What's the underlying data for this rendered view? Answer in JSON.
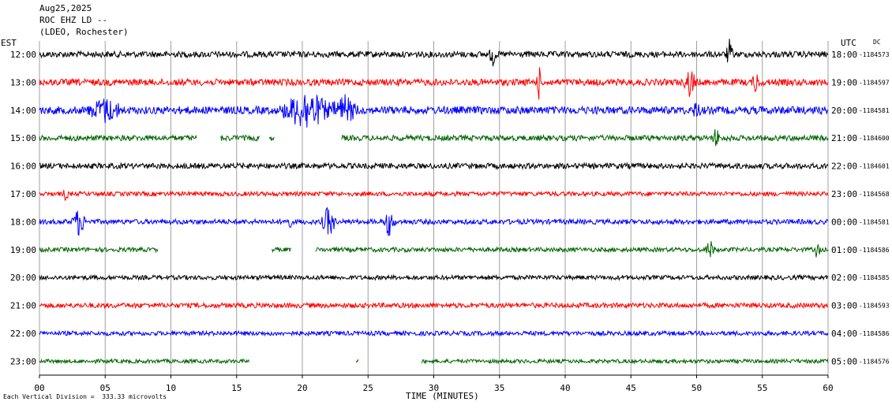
{
  "header": {
    "date": "Aug25,2025",
    "station": "ROC EHZ LD --",
    "network": "(LDEO, Rochester)"
  },
  "axes": {
    "left_tz": "EST",
    "right_tz": "UTC",
    "dc_label": "DC"
  },
  "footer": {
    "scale_note": "Each Vertical Division =  333.33 microvolts",
    "xaxis_title": "TIME (MINUTES)"
  },
  "chart_data": {
    "type": "line",
    "title": "",
    "xlabel": "TIME (MINUTES)",
    "ylabel": "",
    "xlim": [
      0,
      60
    ],
    "grid": true,
    "x_ticks": [
      "00",
      "05",
      "10",
      "15",
      "20",
      "25",
      "30",
      "35",
      "40",
      "45",
      "50",
      "55",
      "60"
    ],
    "trace_colors": [
      "#000000",
      "#ff0000",
      "#0000ff",
      "#006400"
    ],
    "rows": [
      {
        "est": "12:00",
        "utc": "18:00",
        "dc": "-1184573",
        "color": "#000000",
        "noise": 0.55,
        "gaps": [],
        "events": [
          {
            "t": 34.5,
            "amp": 1.6,
            "dur": 0.3
          },
          {
            "t": 52.5,
            "amp": 1.8,
            "dur": 0.3
          }
        ]
      },
      {
        "est": "13:00",
        "utc": "19:00",
        "dc": "-1184597",
        "color": "#ff0000",
        "noise": 0.6,
        "gaps": [],
        "events": [
          {
            "t": 38.0,
            "amp": 2.2,
            "dur": 0.2
          },
          {
            "t": 49.5,
            "amp": 2.0,
            "dur": 0.5
          },
          {
            "t": 54.5,
            "amp": 1.5,
            "dur": 0.3
          }
        ]
      },
      {
        "est": "14:00",
        "utc": "20:00",
        "dc": "-1184581",
        "color": "#0000ff",
        "noise": 0.7,
        "gaps": [],
        "events": [
          {
            "t": 5.0,
            "amp": 1.5,
            "dur": 1.5
          },
          {
            "t": 20.3,
            "amp": 2.6,
            "dur": 2.2
          },
          {
            "t": 23.2,
            "amp": 1.8,
            "dur": 1.2
          },
          {
            "t": 50.0,
            "amp": 1.4,
            "dur": 0.3
          }
        ]
      },
      {
        "est": "15:00",
        "utc": "21:00",
        "dc": "-1184600",
        "color": "#006400",
        "noise": 0.5,
        "gaps": [
          [
            12.0,
            13.8
          ],
          [
            16.8,
            17.5
          ],
          [
            17.9,
            23.0
          ]
        ],
        "events": [
          {
            "t": 51.5,
            "amp": 1.4,
            "dur": 0.3
          }
        ]
      },
      {
        "est": "16:00",
        "utc": "22:00",
        "dc": "-1184601",
        "color": "#000000",
        "noise": 0.5,
        "gaps": [],
        "events": []
      },
      {
        "est": "17:00",
        "utc": "23:00",
        "dc": "-1184568",
        "color": "#ff0000",
        "noise": 0.4,
        "gaps": [],
        "events": [
          {
            "t": 2.0,
            "amp": 1.2,
            "dur": 0.2
          }
        ]
      },
      {
        "est": "18:00",
        "utc": "00:00",
        "dc": "-1184581",
        "color": "#0000ff",
        "noise": 0.45,
        "gaps": [],
        "events": [
          {
            "t": 3.0,
            "amp": 1.8,
            "dur": 0.6
          },
          {
            "t": 18.9,
            "amp": 1.4,
            "dur": 0.3
          },
          {
            "t": 22.0,
            "amp": 2.2,
            "dur": 0.6
          },
          {
            "t": 26.6,
            "amp": 1.9,
            "dur": 0.5
          }
        ]
      },
      {
        "est": "19:00",
        "utc": "01:00",
        "dc": "-1184586",
        "color": "#006400",
        "noise": 0.4,
        "gaps": [
          [
            9.0,
            17.7
          ],
          [
            19.2,
            21.0
          ]
        ],
        "events": [
          {
            "t": 51.0,
            "amp": 1.3,
            "dur": 0.4
          },
          {
            "t": 59.2,
            "amp": 1.6,
            "dur": 0.2
          }
        ]
      },
      {
        "est": "20:00",
        "utc": "02:00",
        "dc": "-1184585",
        "color": "#000000",
        "noise": 0.4,
        "gaps": [],
        "events": []
      },
      {
        "est": "21:00",
        "utc": "03:00",
        "dc": "-1184593",
        "color": "#ff0000",
        "noise": 0.45,
        "gaps": [],
        "events": []
      },
      {
        "est": "22:00",
        "utc": "04:00",
        "dc": "-1184586",
        "color": "#0000ff",
        "noise": 0.4,
        "gaps": [],
        "events": []
      },
      {
        "est": "23:00",
        "utc": "05:00",
        "dc": "-1184576",
        "color": "#006400",
        "noise": 0.35,
        "gaps": [
          [
            16.0,
            24.1
          ],
          [
            24.3,
            29.1
          ]
        ],
        "events": []
      }
    ]
  }
}
